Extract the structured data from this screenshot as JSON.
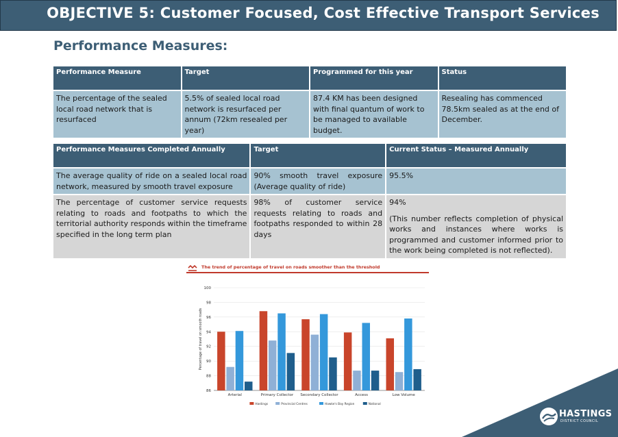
{
  "header": {
    "title": "OBJECTIVE 5: Customer Focused, Cost Effective Transport Services"
  },
  "section_title": "Performance Measures:",
  "table1": {
    "headers": [
      "Performance Measure",
      "Target",
      "Programmed for this year",
      "Status"
    ],
    "rows": [
      [
        "The percentage of the sealed local road network that is resurfaced",
        "5.5%  of sealed local road network is resurfaced per annum (72km resealed per year)",
        "87.4 KM has been designed with final quantum of work to be managed to available budget.",
        "Resealing has commenced 78.5km sealed as at the end of December."
      ]
    ]
  },
  "table2": {
    "headers": [
      "Performance Measures Completed Annually",
      "Target",
      "Current Status – Measured Annually"
    ],
    "rows": [
      {
        "measure": "The average quality of ride on a sealed local road network, measured by smooth travel  exposure",
        "target": "90%  smooth  travel  exposure (Average quality of ride)",
        "status": "95.5%",
        "note": ""
      },
      {
        "measure": "The percentage of customer service requests relating to roads and footpaths to which the  territorial authority responds within the  timeframe specified in the long term plan",
        "target": "98% of customer service requests relating to roads and footpaths responded to  within 28 days",
        "status": "94%",
        "note": "(This number reflects completion of physical works and instances where works is programmed and customer informed prior to the work being completed is not reflected)."
      }
    ]
  },
  "chart_title": "The trend of percentage of travel on roads smoother than the threshold",
  "chart_data": {
    "type": "bar",
    "categories": [
      "Arterial",
      "Primary Collector",
      "Secondary Collector",
      "Access",
      "Low Volume"
    ],
    "series": [
      {
        "name": "Hastings",
        "color": "#c9452b",
        "values": [
          94.0,
          96.8,
          95.7,
          93.9,
          93.1
        ]
      },
      {
        "name": "Provincial Centres",
        "color": "#8fb0d6",
        "values": [
          89.2,
          92.8,
          93.6,
          88.7,
          88.5
        ]
      },
      {
        "name": "Hawke's Bay Region",
        "color": "#3498db",
        "values": [
          94.1,
          96.5,
          96.4,
          95.2,
          95.8
        ]
      },
      {
        "name": "National",
        "color": "#1f5e8c",
        "values": [
          87.2,
          91.1,
          90.5,
          88.7,
          88.9
        ]
      }
    ],
    "ylabel": "Percentage of travel on smooth roads",
    "ylim": [
      86,
      100
    ],
    "yticks": [
      86,
      88,
      90,
      92,
      94,
      96,
      98,
      100
    ],
    "legend": "bottom",
    "grid": true
  },
  "logo": {
    "name": "HASTINGS",
    "subtitle": "DISTRICT COUNCIL"
  },
  "colors": {
    "brand": "#3d5e75",
    "row_blue": "#a6c2d1",
    "row_grey": "#d6d6d6",
    "chart_accent": "#c0392b"
  }
}
